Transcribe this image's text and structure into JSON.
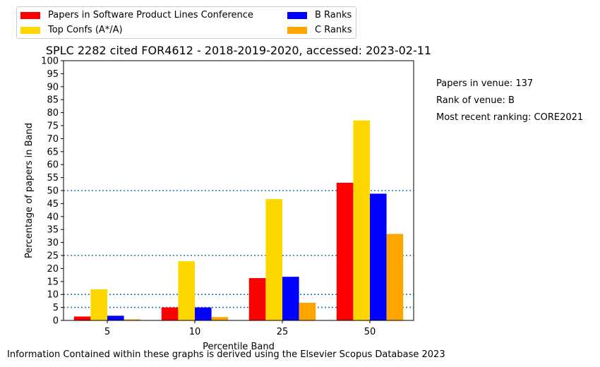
{
  "chart_data": {
    "type": "bar",
    "title": "SPLC 2282 cited FOR4612 - 2018-2019-2020, accessed: 2023-02-11",
    "xlabel": "Percentile Band",
    "ylabel": "Percentage of papers in Band",
    "categories": [
      "5",
      "10",
      "25",
      "50"
    ],
    "ylim": [
      0,
      100
    ],
    "yticks": [
      0,
      5,
      10,
      15,
      20,
      25,
      30,
      35,
      40,
      45,
      50,
      55,
      60,
      65,
      70,
      75,
      80,
      85,
      90,
      95,
      100
    ],
    "reference_lines": [
      5,
      10,
      25,
      50
    ],
    "grid": false,
    "legend_position": "top-left, above plot, 2 columns",
    "series": [
      {
        "name": "Papers in Software Product Lines Conference",
        "color": "#ff0000",
        "values": [
          1.5,
          5.0,
          16.3,
          53.0
        ]
      },
      {
        "name": "Top Confs (A*/A)",
        "color": "#ffd700",
        "values": [
          12.0,
          22.8,
          46.7,
          77.0
        ]
      },
      {
        "name": "B Ranks",
        "color": "#0000ff",
        "values": [
          1.8,
          5.0,
          16.8,
          48.8
        ]
      },
      {
        "name": "C Ranks",
        "color": "#ffa500",
        "values": [
          0.4,
          1.3,
          6.8,
          33.3
        ]
      }
    ]
  },
  "side_notes": {
    "papers_in_venue": "Papers in venue: 137",
    "rank_of_venue": "Rank of venue: B",
    "recent_ranking": "Most recent ranking: CORE2021"
  },
  "footer": "Information Contained within these graphs is derived using the Elsevier Scopus Database 2023",
  "colors": {
    "reference_line": "#1f77b4"
  }
}
